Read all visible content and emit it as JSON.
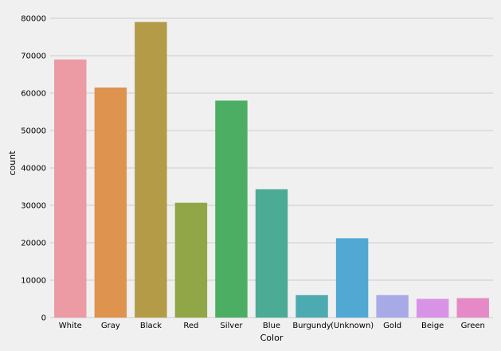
{
  "chart_data": {
    "type": "bar",
    "title": "",
    "xlabel": "Color",
    "ylabel": "count",
    "categories": [
      "White",
      "Gray",
      "Black",
      "Red",
      "Silver",
      "Blue",
      "Burgundy",
      "(Unknown)",
      "Gold",
      "Beige",
      "Green"
    ],
    "values": [
      69000,
      61500,
      79000,
      30700,
      58000,
      34300,
      6000,
      21200,
      6000,
      5000,
      5200
    ],
    "colors": [
      "#ec9aa4",
      "#de934e",
      "#b49b47",
      "#91a647",
      "#4bae63",
      "#4bab94",
      "#4eaab1",
      "#51a8d3",
      "#a8aae8",
      "#d993e6",
      "#e58ac7"
    ],
    "ylim": [
      0,
      80000
    ],
    "yticks": [
      0,
      10000,
      20000,
      30000,
      40000,
      50000,
      60000,
      70000,
      80000
    ],
    "grid": "horizontal"
  }
}
